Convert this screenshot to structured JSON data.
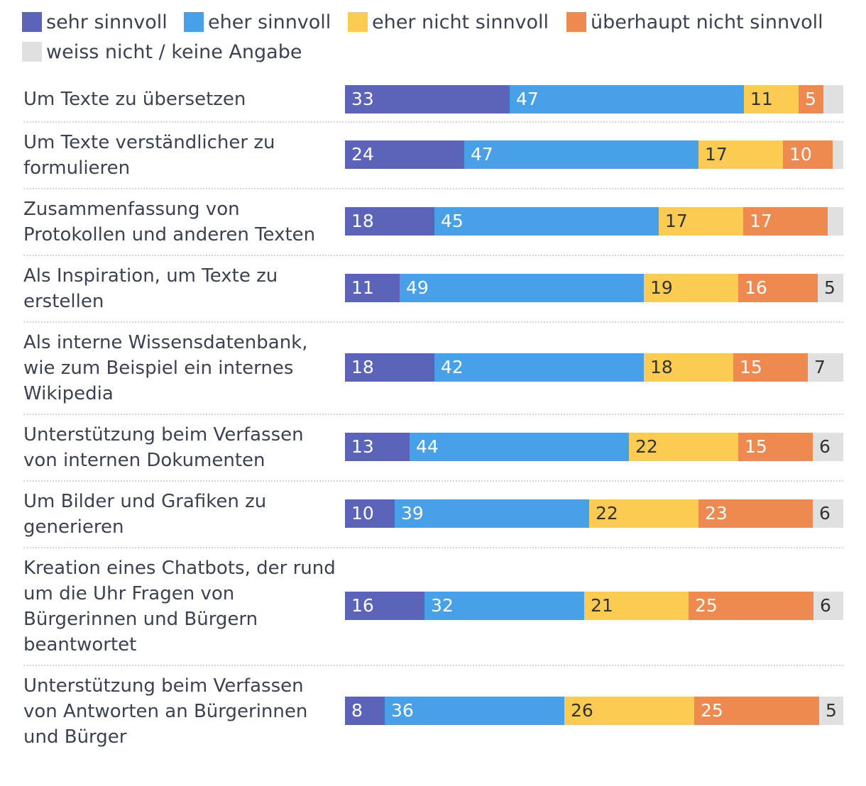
{
  "chart_data": {
    "type": "bar",
    "orientation": "horizontal",
    "stacked": true,
    "unit": "%",
    "legend_position": "top",
    "series": [
      {
        "name": "sehr sinnvoll",
        "color": "#5b64b8",
        "label_color": "#ffffff"
      },
      {
        "name": "eher sinnvoll",
        "color": "#48a0e8",
        "label_color": "#ffffff"
      },
      {
        "name": "eher nicht sinnvoll",
        "color": "#fccb52",
        "label_color": "#333333"
      },
      {
        "name": "überhaupt nicht sinnvoll",
        "color": "#ee8a50",
        "label_color": "#ffffff"
      },
      {
        "name": "weiss nicht / keine Angabe",
        "color": "#e0e0e0",
        "label_color": "#333333"
      }
    ],
    "categories": [
      {
        "label": "Um Texte zu übersetzen",
        "values": [
          33,
          47,
          11,
          5,
          4
        ],
        "labels": [
          "33",
          "47",
          "11",
          "5",
          ""
        ]
      },
      {
        "label": "Um Texte verständlicher zu formulieren",
        "values": [
          24,
          47,
          17,
          10,
          2
        ],
        "labels": [
          "24",
          "47",
          "17",
          "10",
          ""
        ]
      },
      {
        "label": "Zusammenfassung von Protokollen und anderen Texten",
        "values": [
          18,
          45,
          17,
          17,
          3
        ],
        "labels": [
          "18",
          "45",
          "17",
          "17",
          ""
        ]
      },
      {
        "label": "Als Inspiration, um Texte zu erstellen",
        "values": [
          11,
          49,
          19,
          16,
          5
        ],
        "labels": [
          "11",
          "49",
          "19",
          "16",
          "5"
        ]
      },
      {
        "label": "Als interne Wissensdatenbank, wie zum Beispiel ein internes Wikipedia",
        "values": [
          18,
          42,
          18,
          15,
          7
        ],
        "labels": [
          "18",
          "42",
          "18",
          "15",
          "7"
        ]
      },
      {
        "label": "Unterstützung beim Verfassen von internen Dokumenten",
        "values": [
          13,
          44,
          22,
          15,
          6
        ],
        "labels": [
          "13",
          "44",
          "22",
          "15",
          "6"
        ]
      },
      {
        "label": "Um Bilder und Grafiken zu generieren",
        "values": [
          10,
          39,
          22,
          23,
          6
        ],
        "labels": [
          "10",
          "39",
          "22",
          "23",
          "6"
        ]
      },
      {
        "label": "Kreation eines Chatbots, der rund um die Uhr Fragen von Bürgerinnen und Bürgern beantwortet",
        "values": [
          16,
          32,
          21,
          25,
          6
        ],
        "labels": [
          "16",
          "32",
          "21",
          "25",
          "6"
        ]
      },
      {
        "label": "Unterstützung beim Verfassen von Antworten an Bürgerinnen und Bürger",
        "values": [
          8,
          36,
          26,
          25,
          5
        ],
        "labels": [
          "8",
          "36",
          "26",
          "25",
          "5"
        ]
      }
    ]
  }
}
